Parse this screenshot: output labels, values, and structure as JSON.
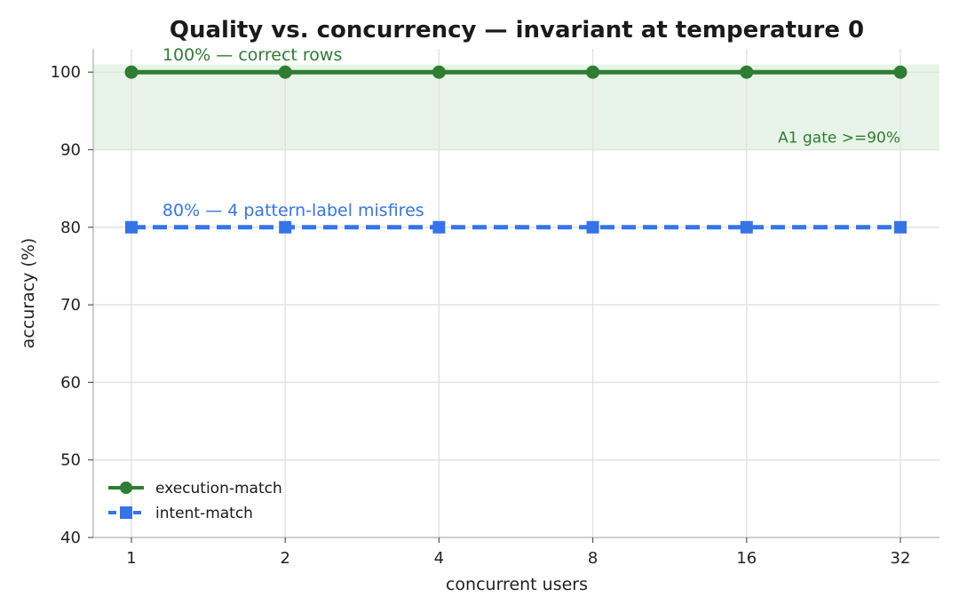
{
  "chart_data": {
    "type": "line",
    "title": "Quality vs. concurrency — invariant at temperature 0",
    "xlabel": "concurrent users",
    "ylabel": "accuracy (%)",
    "x": [
      1,
      2,
      4,
      8,
      16,
      32
    ],
    "x_tick_labels": [
      "1",
      "2",
      "4",
      "8",
      "16",
      "32"
    ],
    "x_scale": "log2",
    "ylim": [
      40,
      103
    ],
    "y_ticks": [
      40,
      50,
      60,
      70,
      80,
      90,
      100
    ],
    "grid": true,
    "legend_position": "lower-left",
    "series": [
      {
        "name": "execution-match",
        "values": [
          100,
          100,
          100,
          100,
          100,
          100
        ],
        "color": "#2e7d32",
        "marker": "circle",
        "line_style": "solid"
      },
      {
        "name": "intent-match",
        "values": [
          80,
          80,
          80,
          80,
          80,
          80
        ],
        "color": "#3574e8",
        "marker": "square",
        "line_style": "dashed"
      }
    ],
    "bands": [
      {
        "y_from": 90,
        "y_to": 101,
        "color": "#e8f4e8",
        "label": "A1 gate >=90%",
        "label_color": "#2e7d32"
      }
    ],
    "annotations": [
      {
        "text": "100% — correct rows",
        "x": 1.15,
        "y": 100,
        "color": "#2e7d32"
      },
      {
        "text": "80% — 4 pattern-label misfires",
        "x": 1.15,
        "y": 80,
        "color": "#3574e8"
      }
    ]
  }
}
